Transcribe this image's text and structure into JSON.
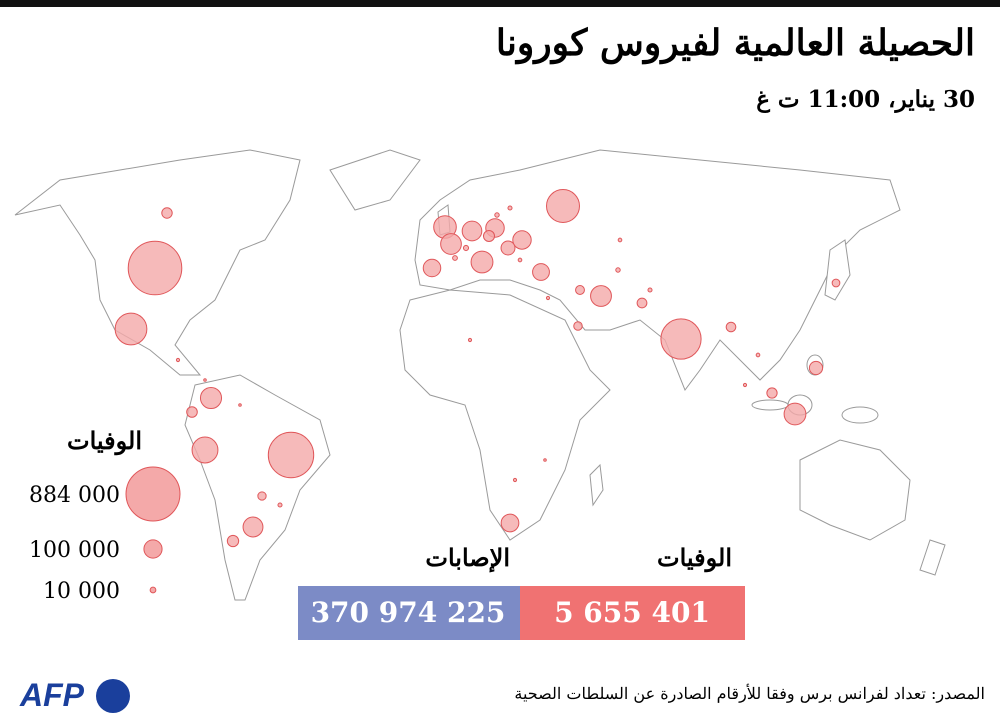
{
  "header": {
    "title": "الحصيلة العالمية لفيروس كورونا",
    "subtitle": "30 يناير، 11:00 ت غ"
  },
  "legend": {
    "title": "الوفيات",
    "color": "#f4a9a9",
    "stroke": "#e0575a",
    "items": [
      {
        "value": 884000,
        "label": "884 000"
      },
      {
        "value": 100000,
        "label": "100 000"
      },
      {
        "value": 10000,
        "label": "10 000"
      }
    ]
  },
  "map": {
    "bubbles": [
      870000,
      625000,
      490000,
      330000,
      305000,
      203000,
      155000,
      145000,
      130000,
      135000,
      120000,
      144000,
      132000,
      117000,
      93000,
      104000,
      103000,
      95000,
      86000,
      53000,
      33000,
      39000,
      34000,
      59000,
      37000,
      29000,
      28000,
      32000,
      22000,
      24000,
      18000,
      21000,
      8000,
      6000,
      5000,
      7000,
      4000,
      3000,
      6000,
      5000,
      4000,
      3000,
      2000,
      3000,
      2000,
      4000,
      3000,
      2000,
      5000,
      3000
    ]
  },
  "totals": [
    {
      "name": "الإصابات",
      "value": 370974225,
      "label": "370 974 225",
      "color": "#7c8bc6"
    },
    {
      "name": "الوفيات",
      "value": 5655401,
      "label": "5 655 401",
      "color": "#f07272"
    }
  ],
  "source": "المصدر: تعداد لفرانس برس وفقا للأرقام الصادرة عن السلطات الصحية",
  "logo": "AFP"
}
